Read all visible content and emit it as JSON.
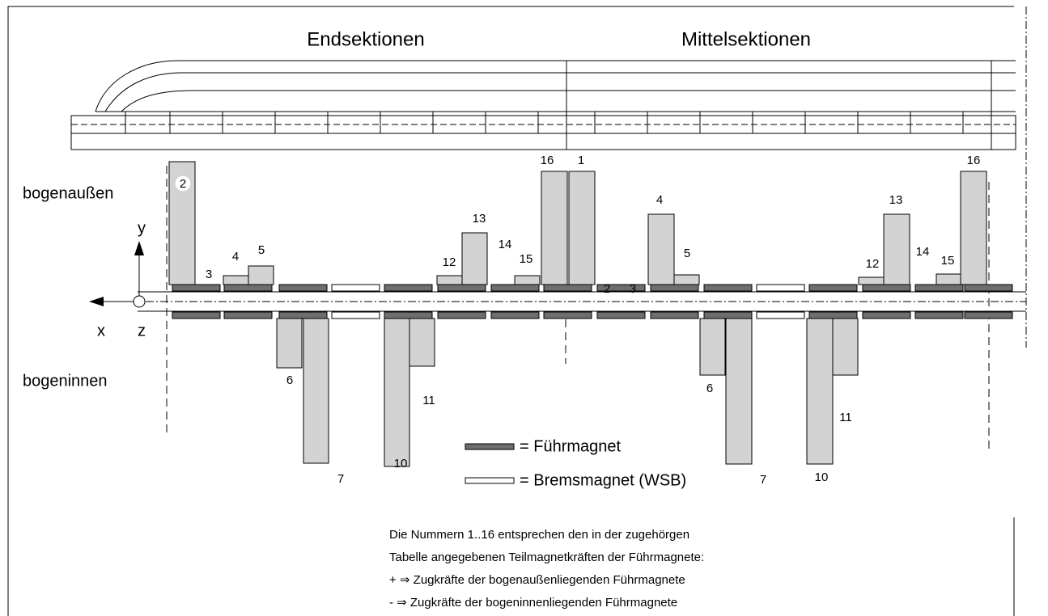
{
  "titles": [
    "Endsektionen",
    "Mittelsektionen"
  ],
  "sides": [
    "bogenaußen",
    "bogeninnen"
  ],
  "axes": {
    "y": "y",
    "x": "x",
    "z": "z"
  },
  "bar_labels": [
    "2",
    "3",
    "4",
    "5",
    "6",
    "7",
    "10",
    "11",
    "12",
    "13",
    "14",
    "15",
    "16",
    "1",
    "2",
    "3",
    "4",
    "5",
    "6",
    "7",
    "10",
    "11",
    "12",
    "13",
    "14",
    "15",
    "16"
  ],
  "legend": [
    "= Führmagnet",
    "= Bremsmagnet (WSB)"
  ],
  "notes": [
    "Die Nummern 1..16 entsprechen den in der zugehörgen",
    "Tabelle angegebenen Teilmagnetkräften der Führmagnete:",
    "+ ⇒ Zugkräfte der bogenaußenliegenden Führmagnete",
    "- ⇒ Zugkräfte der bogeninnenliegenden Führmagnete"
  ]
}
